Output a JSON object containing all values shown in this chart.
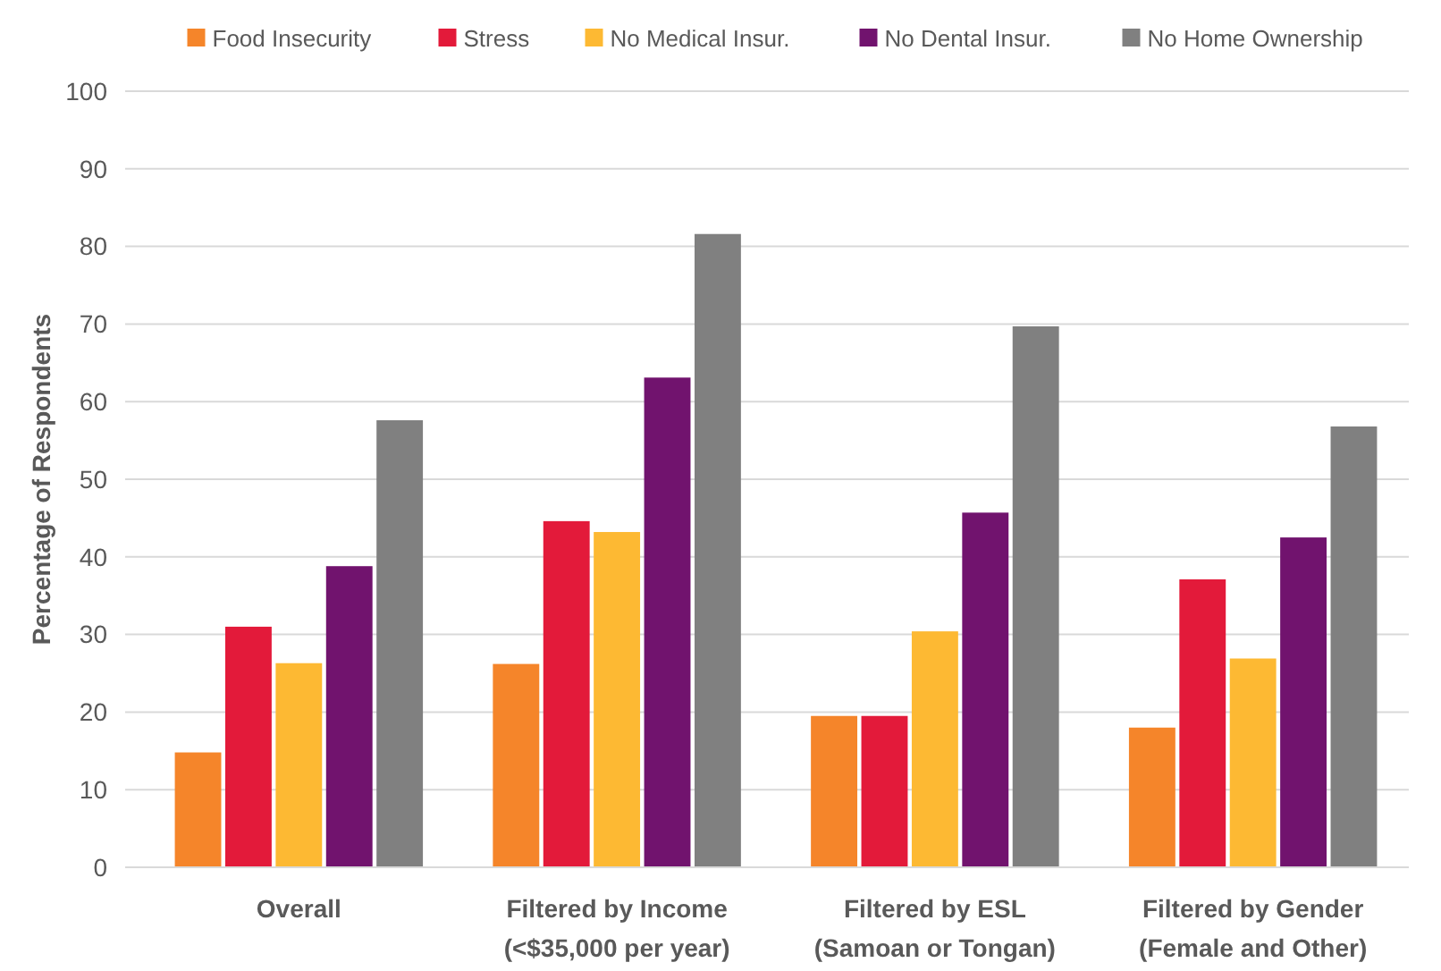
{
  "chart_data": {
    "type": "bar",
    "ylabel": "Percentage of Respondents",
    "categories": [
      "Overall",
      "Filtered by Income\n(<$35,000 per year)",
      "Filtered by ESL\n(Samoan or Tongan)",
      "Filtered by Gender\n(Female and Other)"
    ],
    "series": [
      {
        "name": "Food Insecurity",
        "color": "#f5852a",
        "values": [
          14.8,
          26.2,
          19.5,
          18.0
        ]
      },
      {
        "name": "Stress",
        "color": "#e31a3a",
        "values": [
          31.0,
          44.6,
          19.5,
          37.1
        ]
      },
      {
        "name": "No Medical Insur.",
        "color": "#fdb933",
        "values": [
          26.3,
          43.2,
          30.4,
          26.9
        ]
      },
      {
        "name": "No Dental Insur.",
        "color": "#71136e",
        "values": [
          38.8,
          63.1,
          45.7,
          42.5
        ]
      },
      {
        "name": "No Home Ownership",
        "color": "#808080",
        "values": [
          57.6,
          81.6,
          69.7,
          56.8
        ]
      }
    ],
    "ylim": [
      0,
      100
    ],
    "yticks": [
      0,
      10,
      20,
      30,
      40,
      50,
      60,
      70,
      80,
      90,
      100
    ],
    "grid": "y",
    "legend": "top"
  }
}
